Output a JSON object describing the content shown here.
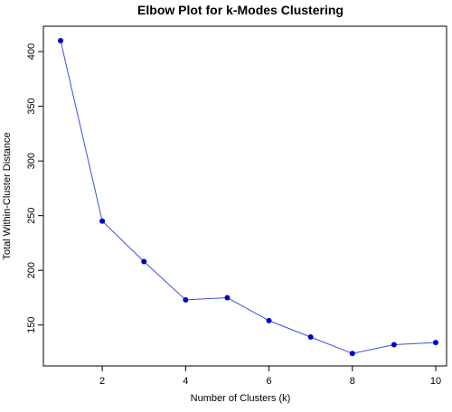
{
  "chart_data": {
    "type": "line",
    "title": "Elbow Plot for k-Modes Clustering",
    "xlabel": "Number of Clusters (k)",
    "ylabel": "Total Within-Cluster Distance",
    "x": [
      1,
      2,
      3,
      4,
      5,
      6,
      7,
      8,
      9,
      10
    ],
    "series": [
      {
        "values": [
          410,
          245,
          208,
          173,
          175,
          154,
          139,
          124,
          132,
          134
        ]
      }
    ],
    "xlim": [
      1,
      10
    ],
    "ylim": [
      125,
      410
    ],
    "xticks": [
      2,
      4,
      6,
      8,
      10
    ],
    "yticks": [
      150,
      200,
      250,
      300,
      350,
      400
    ],
    "grid": false,
    "line_color": "#3a4fe0",
    "marker_color": "#0000cc"
  }
}
